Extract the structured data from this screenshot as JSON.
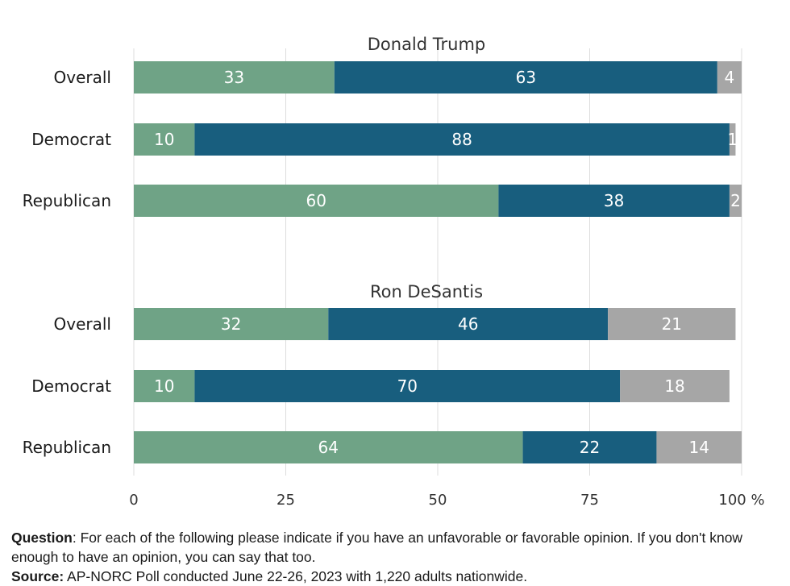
{
  "chart_data": {
    "type": "bar",
    "orientation": "horizontal",
    "stacked": true,
    "xlim": [
      0,
      100
    ],
    "x_ticks": [
      "0",
      "25",
      "50",
      "75",
      "100 %"
    ],
    "grid": true,
    "colors": [
      "#6fa386",
      "#185e7e",
      "#a6a6a6"
    ],
    "groups": [
      {
        "title": "Donald Trump",
        "rows": [
          {
            "label": "Overall",
            "values": [
              33,
              63,
              4
            ]
          },
          {
            "label": "Democrat",
            "values": [
              10,
              88,
              1
            ]
          },
          {
            "label": "Republican",
            "values": [
              60,
              38,
              2
            ]
          }
        ]
      },
      {
        "title": "Ron DeSantis",
        "rows": [
          {
            "label": "Overall",
            "values": [
              32,
              46,
              21
            ]
          },
          {
            "label": "Democrat",
            "values": [
              10,
              70,
              18
            ]
          },
          {
            "label": "Republican",
            "values": [
              64,
              22,
              14
            ]
          }
        ]
      }
    ]
  },
  "footer": {
    "question_label": "Question",
    "question_text": ": For each of the following please indicate if you have an unfavorable or favorable opinion. If you don't know enough to have an opinion, you can say that too.",
    "source_label": "Source:",
    "source_text": " AP-NORC Poll conducted June 22-26, 2023 with 1,220 adults nationwide."
  }
}
